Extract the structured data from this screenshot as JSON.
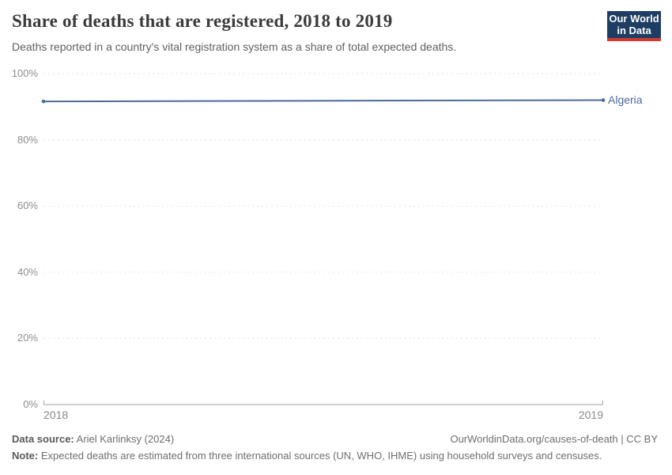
{
  "header": {
    "title": "Share of deaths that are registered, 2018 to 2019",
    "subtitle": "Deaths reported in a country's vital registration system as a share of total expected deaths.",
    "logo": {
      "line1": "Our World",
      "line2": "in Data",
      "bg_color": "#1d3d63",
      "bar_color": "#cf3b32"
    }
  },
  "chart_data": {
    "type": "line",
    "title": "Share of deaths that are registered, 2018 to 2019",
    "x": [
      2018,
      2019
    ],
    "xtick_labels": [
      "2018",
      "2019"
    ],
    "yticks": [
      0,
      20,
      40,
      60,
      80,
      100
    ],
    "ytick_labels": [
      "0%",
      "20%",
      "40%",
      "60%",
      "80%",
      "100%"
    ],
    "ylim": [
      0,
      100
    ],
    "grid": "horizontal-dashed",
    "legend_position": "right-of-line-end",
    "series": [
      {
        "name": "Algeria",
        "values": [
          91.6,
          92.0
        ],
        "color": "#4c6a9c"
      }
    ]
  },
  "footer": {
    "datasource_label": "Data source:",
    "datasource_value": " Ariel Karlinksy (2024)",
    "link": "OurWorldinData.org/causes-of-death | CC BY",
    "note_label": "Note:",
    "note_value": " Expected deaths are estimated from three international sources (UN, WHO, IHME) using household surveys and censuses."
  }
}
